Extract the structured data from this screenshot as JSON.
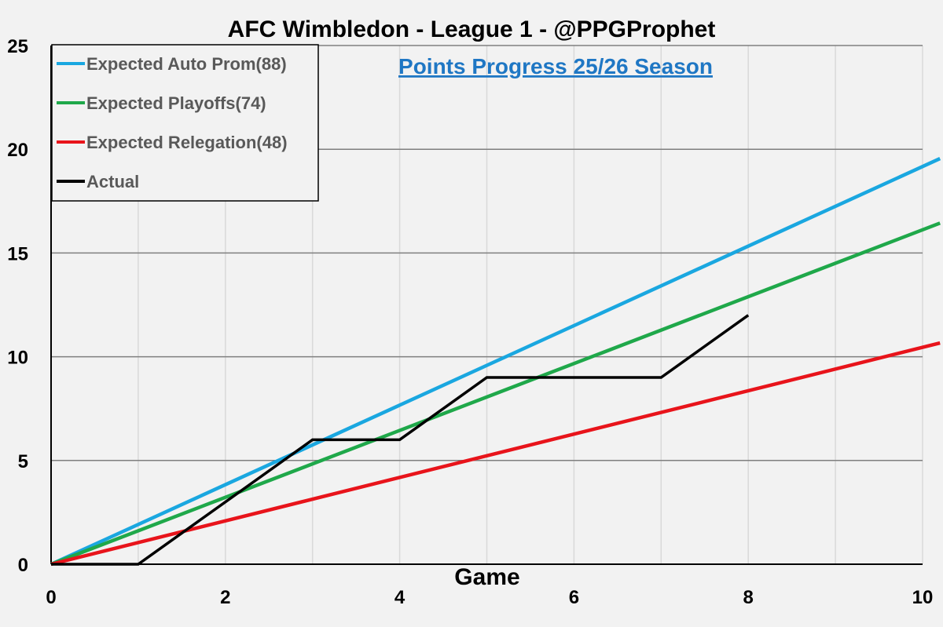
{
  "chart_data": {
    "type": "line",
    "title": "AFC Wimbledon - League 1 - @PPGProphet",
    "subtitle": "Points Progress 25/26 Season",
    "xlabel": "Game",
    "ylabel": "",
    "xlim": [
      0,
      10
    ],
    "ylim": [
      0,
      25
    ],
    "xticks": [
      0,
      2,
      4,
      6,
      8,
      10
    ],
    "yticks": [
      0,
      5,
      10,
      15,
      20,
      25
    ],
    "grid": true,
    "legend_position": "top-left",
    "series": [
      {
        "name": "Expected Auto Prom(88)",
        "color": "#1aa7e0",
        "x": [
          0,
          10.2
        ],
        "y": [
          0,
          19.55
        ]
      },
      {
        "name": "Expected Playoffs(74)",
        "color": "#1fa84a",
        "x": [
          0,
          10.2
        ],
        "y": [
          0,
          16.44
        ]
      },
      {
        "name": "Expected Relegation(48)",
        "color": "#e8141b",
        "x": [
          0,
          10.2
        ],
        "y": [
          0,
          10.66
        ]
      },
      {
        "name": "Actual",
        "color": "#000000",
        "x": [
          0,
          1,
          2,
          3,
          4,
          5,
          6,
          7,
          8
        ],
        "y": [
          0,
          0,
          3,
          6,
          6,
          9,
          9,
          9,
          12
        ]
      }
    ]
  }
}
